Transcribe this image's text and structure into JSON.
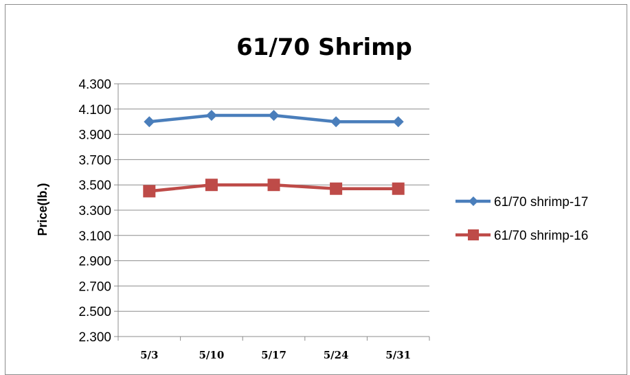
{
  "chart_data": {
    "type": "line",
    "title": "61/70 Shrimp",
    "xlabel": "",
    "ylabel": "Price(lb.)",
    "categories": [
      "5/3",
      "5/10",
      "5/17",
      "5/24",
      "5/31"
    ],
    "y_ticks": [
      "2.300",
      "2.500",
      "2.700",
      "2.900",
      "3.100",
      "3.300",
      "3.500",
      "3.700",
      "3.900",
      "4.100",
      "4.300"
    ],
    "ylim": [
      2.3,
      4.3
    ],
    "grid": true,
    "legend_position": "right",
    "series": [
      {
        "name": "61/70 shrimp-17",
        "values": [
          4.0,
          4.05,
          4.05,
          4.0,
          4.0
        ],
        "color": "#4a7ebb",
        "marker": "diamond"
      },
      {
        "name": "61/70 shrimp-16",
        "values": [
          3.45,
          3.5,
          3.5,
          3.47,
          3.47
        ],
        "color": "#be4b48",
        "marker": "square"
      }
    ]
  }
}
